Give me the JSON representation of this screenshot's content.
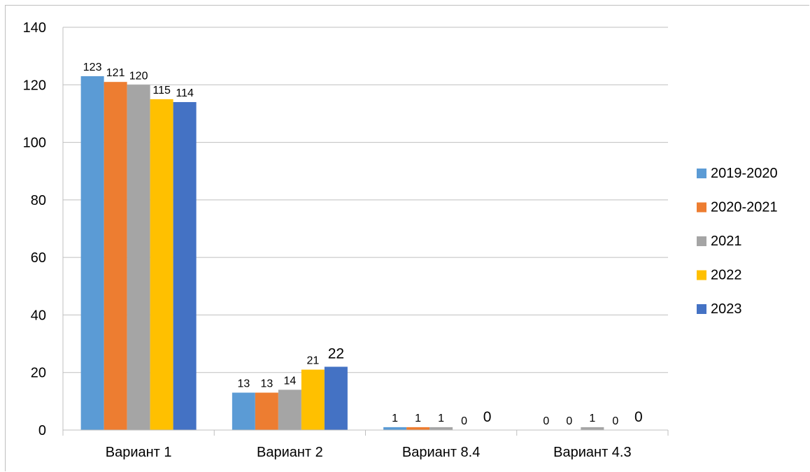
{
  "chart_data": {
    "type": "bar",
    "categories": [
      "Вариант 1",
      "Вариант 2",
      "Вариант 8.4",
      "Вариант 4.3"
    ],
    "series": [
      {
        "name": "2019-2020",
        "color": "#5b9bd5",
        "values": [
          123,
          13,
          1,
          0
        ]
      },
      {
        "name": "2020-2021",
        "color": "#ed7d31",
        "values": [
          121,
          13,
          1,
          0
        ]
      },
      {
        "name": "2021",
        "color": "#a5a5a5",
        "values": [
          120,
          14,
          1,
          1
        ]
      },
      {
        "name": "2022",
        "color": "#ffc000",
        "values": [
          115,
          21,
          0,
          0
        ]
      },
      {
        "name": "2023",
        "color": "#4472c4",
        "values": [
          114,
          22,
          0,
          0
        ]
      }
    ],
    "ylim": [
      0,
      140
    ],
    "yticks": [
      0,
      20,
      40,
      60,
      80,
      100,
      120,
      140
    ],
    "grid": true,
    "legend": "right"
  }
}
